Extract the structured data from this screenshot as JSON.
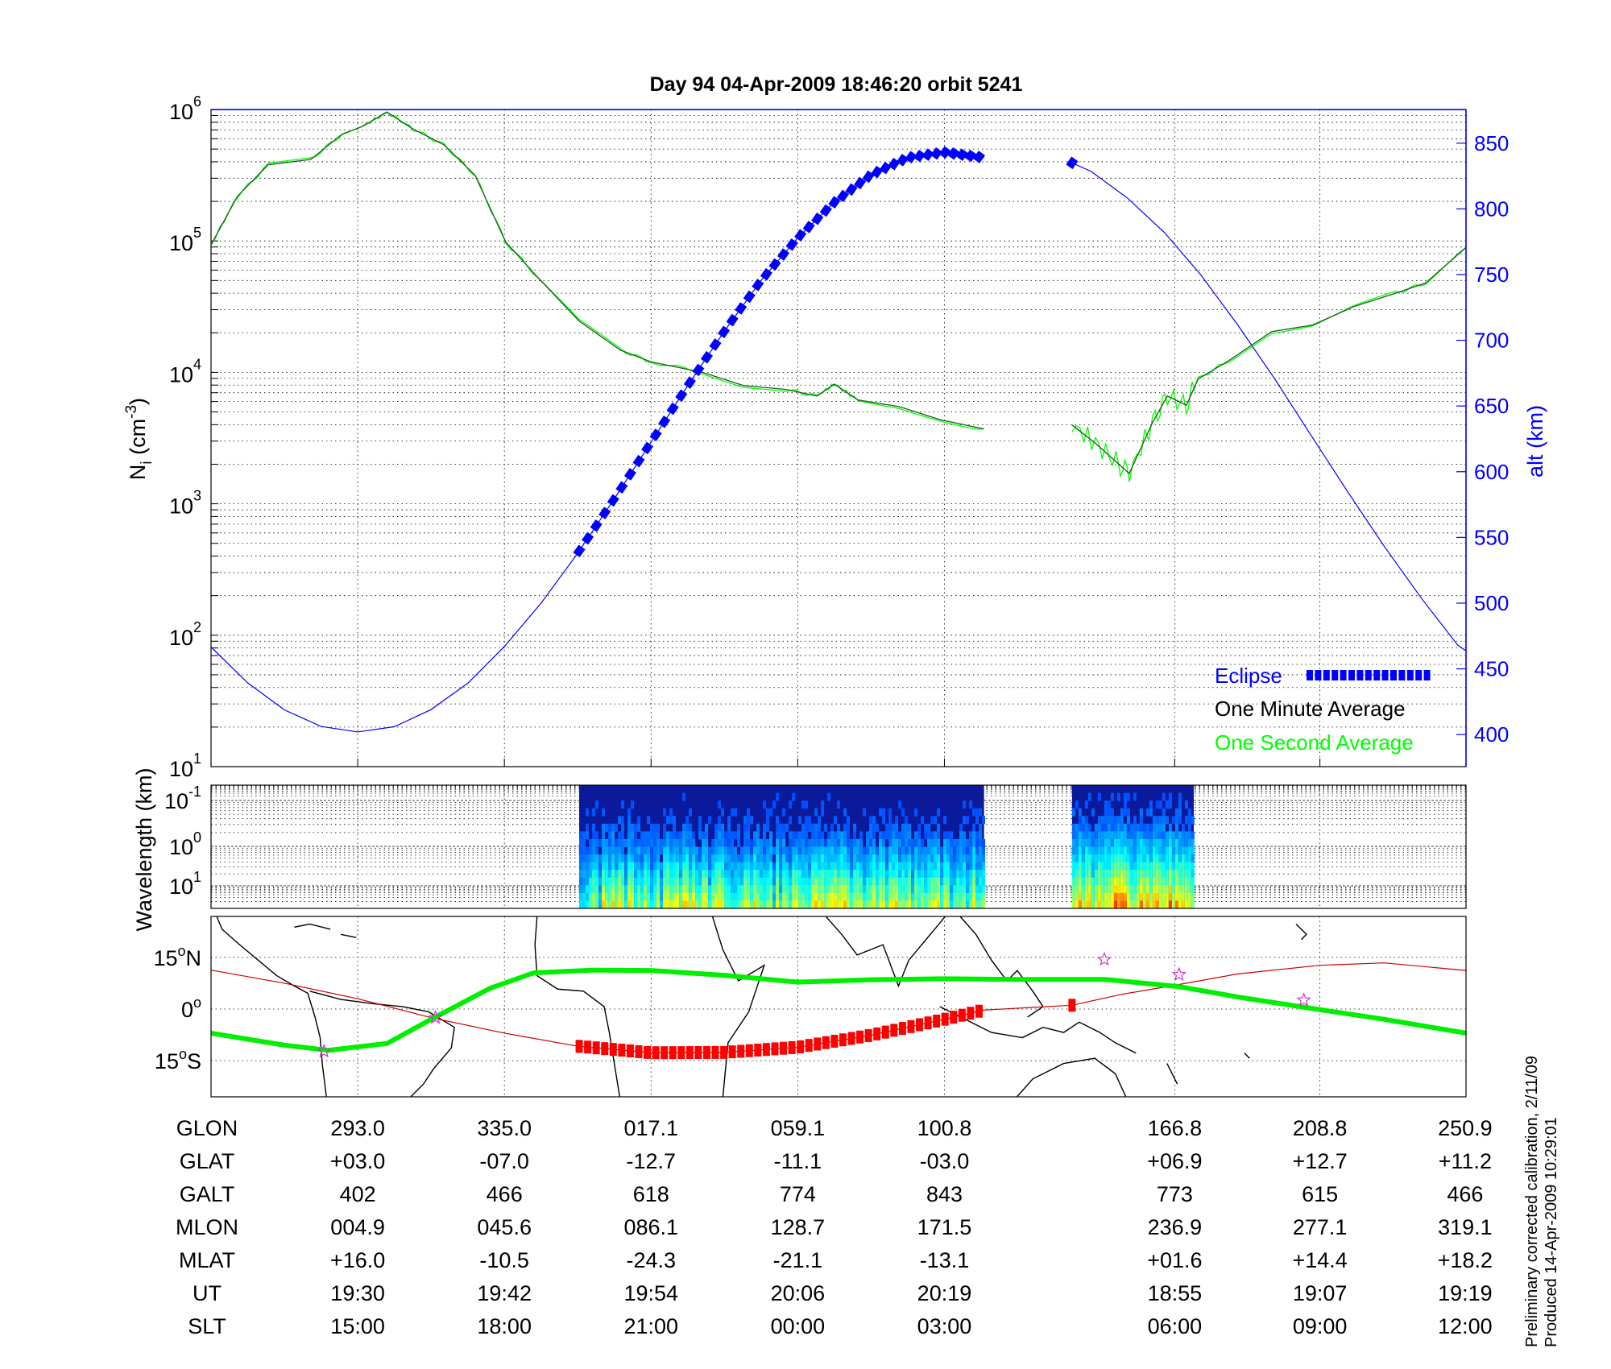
{
  "title": "Day 94  04-Apr-2009 18:46:20   orbit 5241",
  "footer": {
    "line1": "Preliminary corrected calibration, 2/11/09",
    "line2": "Produced 14-Apr-2009 10:29:01"
  },
  "colors": {
    "altitude": "#0000ff",
    "eclipse": "#0000ff",
    "one_minute": "#000000",
    "one_second": "#00ff00",
    "track": "#cc0000",
    "track_eclipse": "#ff0000",
    "dip_equator": "#00ee00",
    "star": "#cc33cc"
  },
  "chart_data": [
    {
      "type": "line",
      "id": "density",
      "xlim": [
        0,
        8.556
      ],
      "x_gridlines": [
        1,
        2,
        3,
        4,
        5,
        6.57,
        7.56
      ],
      "ylabel_main": "N",
      "ylabel_sub": "i",
      "ylabel_unit_pre": " (cm",
      "ylabel_unit_sup": "-3",
      "ylabel_unit_post": ")",
      "yscale": "log",
      "ylim_log10": [
        1,
        6
      ],
      "yticks": [
        {
          "base": "10",
          "exp": "1"
        },
        {
          "base": "10",
          "exp": "2"
        },
        {
          "base": "10",
          "exp": "3"
        },
        {
          "base": "10",
          "exp": "4"
        },
        {
          "base": "10",
          "exp": "5"
        },
        {
          "base": "10",
          "exp": "6"
        }
      ],
      "y2label": "alt (km)",
      "y2lim": [
        375.6,
        875.6
      ],
      "y2ticks": [
        "400",
        "450",
        "500",
        "550",
        "600",
        "650",
        "700",
        "750",
        "800",
        "850"
      ],
      "legend": {
        "placement": "bottom-right",
        "eclipse": "Eclipse",
        "one_minute": "One Minute Average",
        "one_second": "One Second Average"
      },
      "eclipse_ranges": [
        [
          2.51,
          5.27
        ],
        [
          5.87,
          5.9
        ]
      ],
      "altitude": [
        [
          0,
          466.6
        ],
        [
          0.25,
          439.3
        ],
        [
          0.5,
          418.8
        ],
        [
          0.75,
          406.2
        ],
        [
          1,
          402
        ],
        [
          1.25,
          406
        ],
        [
          1.5,
          419
        ],
        [
          1.75,
          439
        ],
        [
          2,
          467
        ],
        [
          2.25,
          500
        ],
        [
          2.5,
          538
        ],
        [
          2.75,
          579.5
        ],
        [
          3,
          622.5
        ],
        [
          3.25,
          665.5
        ],
        [
          3.5,
          707
        ],
        [
          3.75,
          745.5
        ],
        [
          4,
          778
        ],
        [
          4.25,
          805
        ],
        [
          4.5,
          826
        ],
        [
          4.75,
          839
        ],
        [
          5,
          843
        ],
        [
          5.27,
          839
        ],
        null,
        [
          5.87,
          835
        ],
        [
          6,
          828.5
        ],
        [
          6.25,
          808
        ],
        [
          6.5,
          782
        ],
        [
          6.75,
          749.5
        ],
        [
          7,
          711.6
        ],
        [
          7.25,
          671
        ],
        [
          7.5,
          627.6
        ],
        [
          7.75,
          584.6
        ],
        [
          8,
          543
        ],
        [
          8.25,
          504
        ],
        [
          8.5,
          468
        ],
        [
          8.556,
          463.7
        ]
      ],
      "ni_log10": [
        [
          0,
          4.97
        ],
        [
          0.18,
          5.34
        ],
        [
          0.39,
          5.58
        ],
        [
          0.68,
          5.62
        ],
        [
          0.89,
          5.81
        ],
        [
          1.03,
          5.87
        ],
        [
          1.2,
          5.98
        ],
        [
          1.38,
          5.85
        ],
        [
          1.59,
          5.73
        ],
        [
          1.8,
          5.5
        ],
        [
          2.01,
          4.99
        ],
        [
          2.23,
          4.72
        ],
        [
          2.51,
          4.39
        ],
        [
          2.79,
          4.17
        ],
        [
          3.0,
          4.08
        ],
        [
          3.35,
          4.0
        ],
        [
          3.63,
          3.9
        ],
        [
          3.92,
          3.87
        ],
        [
          4.13,
          3.82
        ],
        [
          4.25,
          3.91
        ],
        [
          4.41,
          3.79
        ],
        [
          4.69,
          3.74
        ],
        [
          4.97,
          3.64
        ],
        [
          5.27,
          3.57
        ],
        null,
        [
          5.87,
          3.6
        ],
        [
          6.03,
          3.46
        ],
        [
          6.17,
          3.32
        ],
        [
          6.26,
          3.23
        ],
        [
          6.42,
          3.62
        ],
        [
          6.52,
          3.82
        ],
        [
          6.65,
          3.75
        ],
        [
          6.73,
          3.95
        ],
        [
          6.94,
          4.09
        ],
        [
          7.23,
          4.31
        ],
        [
          7.51,
          4.36
        ],
        [
          7.79,
          4.5
        ],
        [
          8.07,
          4.6
        ],
        [
          8.28,
          4.68
        ],
        [
          8.556,
          4.95
        ]
      ]
    },
    {
      "type": "heatmap",
      "id": "spectrogram",
      "ylabel": "Wavelength (km)",
      "yticks": [
        {
          "base": "10",
          "exp": "-1"
        },
        {
          "base": "10",
          "exp": "0"
        },
        {
          "base": "10",
          "exp": "1"
        }
      ],
      "data_ranges": [
        [
          2.51,
          5.27
        ],
        [
          5.87,
          6.7
        ]
      ]
    },
    {
      "type": "line",
      "id": "ground-track",
      "ylim": [
        -25.5,
        26.9
      ],
      "yticks": [
        {
          "lat": 15,
          "num": "15",
          "hemi": "N"
        },
        {
          "lat": 0,
          "num": "0",
          "hemi": ""
        },
        {
          "lat": -15,
          "num": "15",
          "hemi": "S"
        }
      ],
      "satellite_track": [
        [
          0,
          11.3
        ],
        [
          0.5,
          7.5
        ],
        [
          1,
          3.0
        ],
        [
          1.5,
          -2.5
        ],
        [
          2,
          -7.0
        ],
        [
          2.5,
          -10.8
        ],
        [
          3,
          -12.7
        ],
        [
          3.5,
          -12.6
        ],
        [
          4,
          -11.1
        ],
        [
          4.5,
          -7.6
        ],
        [
          5,
          -3.0
        ],
        [
          5.27,
          -0.3
        ],
        [
          5.87,
          1.1
        ],
        [
          6.2,
          4.2
        ],
        [
          6.57,
          6.9
        ],
        [
          7,
          10.2
        ],
        [
          7.56,
          12.7
        ],
        [
          8,
          13.4
        ],
        [
          8.556,
          11.2
        ]
      ],
      "dip_equator": [
        [
          0,
          -7
        ],
        [
          0.5,
          -10.5
        ],
        [
          0.8,
          -12
        ],
        [
          1.2,
          -10
        ],
        [
          1.5,
          -3
        ],
        [
          1.9,
          6
        ],
        [
          2.2,
          10.5
        ],
        [
          2.6,
          11.3
        ],
        [
          3,
          11.2
        ],
        [
          3.5,
          9.8
        ],
        [
          4,
          7.8
        ],
        [
          4.5,
          8.5
        ],
        [
          5,
          8.8
        ],
        [
          5.5,
          8.6
        ],
        [
          6.1,
          8.6
        ],
        [
          6.6,
          6.5
        ],
        [
          7,
          3.5
        ],
        [
          7.5,
          0.2
        ],
        [
          8,
          -3
        ],
        [
          8.556,
          -7
        ]
      ],
      "stars": [
        [
          0.77,
          -12.3
        ],
        [
          1.53,
          -2.5
        ],
        [
          6.09,
          14.4
        ],
        [
          6.6,
          10
        ],
        [
          7.45,
          2.6
        ]
      ],
      "eclipse_ranges": [
        [
          2.51,
          5.27
        ],
        [
          5.87,
          5.9
        ]
      ]
    }
  ],
  "table": {
    "row_labels": [
      "GLON",
      "GLAT",
      "GALT",
      "MLON",
      "MLAT",
      "UT",
      "SLT"
    ],
    "column_x": [
      1,
      2,
      3,
      4,
      5,
      6.57,
      7.56,
      8.55
    ],
    "rows": [
      [
        "293.0",
        "335.0",
        "017.1",
        "059.1",
        "100.8",
        "166.8",
        "208.8",
        "250.9"
      ],
      [
        "+03.0",
        "-07.0",
        "-12.7",
        "-11.1",
        "-03.0",
        "+06.9",
        "+12.7",
        "+11.2"
      ],
      [
        "402",
        "466",
        "618",
        "774",
        "843",
        "773",
        "615",
        "466"
      ],
      [
        "004.9",
        "045.6",
        "086.1",
        "128.7",
        "171.5",
        "236.9",
        "277.1",
        "319.1"
      ],
      [
        "+16.0",
        "-10.5",
        "-24.3",
        "-21.1",
        "-13.1",
        "+01.6",
        "+14.4",
        "+18.2"
      ],
      [
        "19:30",
        "19:42",
        "19:54",
        "20:06",
        "20:19",
        "18:55",
        "19:07",
        "19:19"
      ],
      [
        "15:00",
        "18:00",
        "21:00",
        "00:00",
        "03:00",
        "06:00",
        "09:00",
        "12:00"
      ]
    ]
  }
}
